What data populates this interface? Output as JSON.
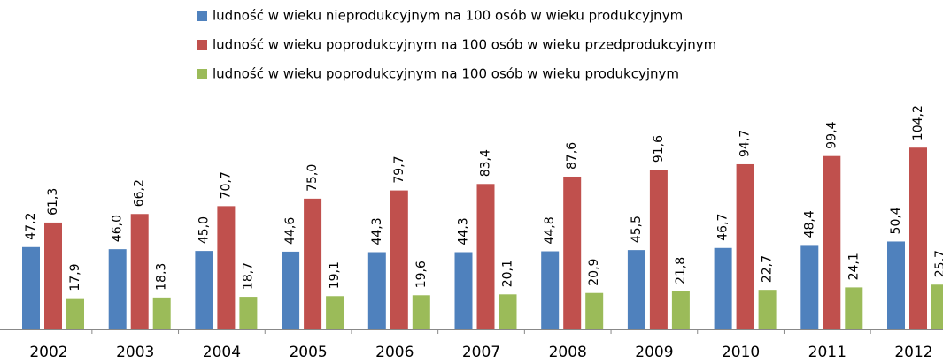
{
  "chart_data": {
    "type": "bar",
    "categories": [
      "2002",
      "2003",
      "2004",
      "2005",
      "2006",
      "2007",
      "2008",
      "2009",
      "2010",
      "2011",
      "2012"
    ],
    "series": [
      {
        "name": "ludność w wieku nieprodukcyjnym na 100 osób w wieku produkcyjnym",
        "color": "#4f81bd",
        "values": [
          47.2,
          46.0,
          45.0,
          44.6,
          44.3,
          44.3,
          44.8,
          45.5,
          46.7,
          48.4,
          50.4
        ],
        "value_labels": [
          "47,2",
          "46,0",
          "45,0",
          "44,6",
          "44,3",
          "44,3",
          "44,8",
          "45,5",
          "46,7",
          "48,4",
          "50,4"
        ]
      },
      {
        "name": "ludność w wieku poprodukcyjnym na 100 osób w wieku przedprodukcyjnym",
        "color": "#c0504d",
        "values": [
          61.3,
          66.2,
          70.7,
          75.0,
          79.7,
          83.4,
          87.6,
          91.6,
          94.7,
          99.4,
          104.2
        ],
        "value_labels": [
          "61,3",
          "66,2",
          "70,7",
          "75,0",
          "79,7",
          "83,4",
          "87,6",
          "91,6",
          "94,7",
          "99,4",
          "104,2"
        ]
      },
      {
        "name": "ludność w wieku poprodukcyjnym na 100 osób w wieku produkcyjnym",
        "color": "#9bbb59",
        "values": [
          17.9,
          18.3,
          18.7,
          19.1,
          19.6,
          20.1,
          20.9,
          21.8,
          22.7,
          24.1,
          25.7
        ],
        "value_labels": [
          "17,9",
          "18,3",
          "18,7",
          "19,1",
          "19,6",
          "20,1",
          "20,9",
          "21,8",
          "22,7",
          "24,1",
          "25,7"
        ]
      }
    ],
    "ylim": [
      0,
      120
    ],
    "legend": "top"
  }
}
